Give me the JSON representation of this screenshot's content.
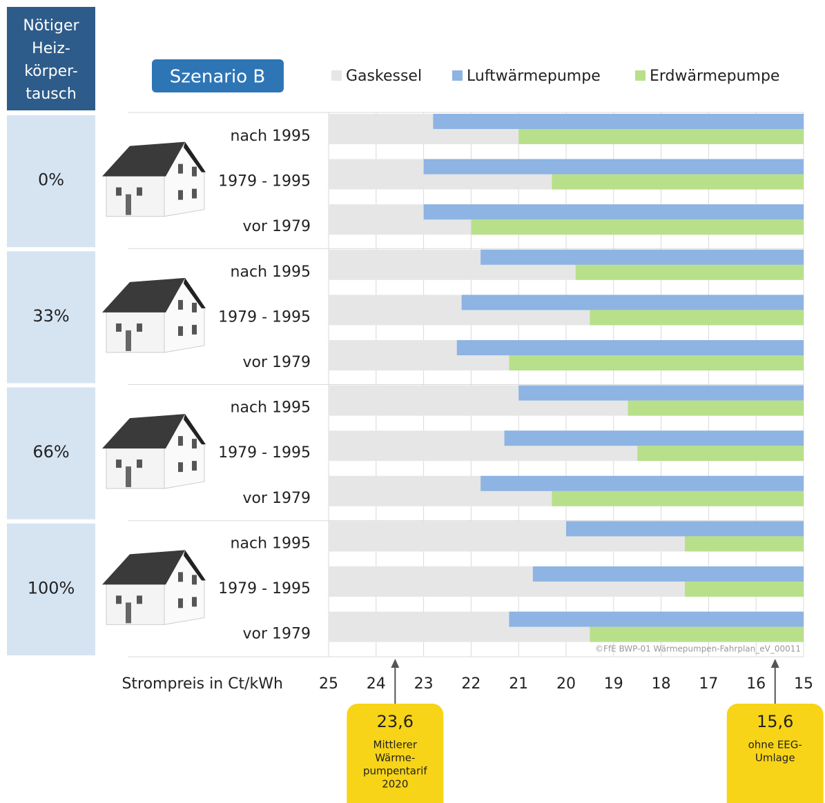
{
  "chart_data": {
    "type": "hbar",
    "title": "Szenario B",
    "header": [
      "Nötiger",
      "Heiz-",
      "körper-",
      "tausch"
    ],
    "groups": [
      "0%",
      "33%",
      "66%",
      "100%"
    ],
    "categories": [
      "nach 1995",
      "1979 - 1995",
      "vor 1979",
      "nach 1995",
      "1979 - 1995",
      "vor 1979",
      "nach 1995",
      "1979 - 1995",
      "vor 1979",
      "nach 1995",
      "1979 - 1995",
      "vor 1979"
    ],
    "series": [
      {
        "name": "Gaskessel",
        "color": "#e6e6e6",
        "values": [
          25,
          25,
          25,
          25,
          25,
          25,
          25,
          25,
          25,
          25,
          25,
          25
        ]
      },
      {
        "name": "Luftwärmepumpe",
        "color": "#8db4e2",
        "values": [
          22.8,
          23.0,
          23.0,
          21.8,
          22.2,
          22.3,
          21.0,
          21.3,
          21.8,
          20.0,
          20.7,
          21.2
        ]
      },
      {
        "name": "Erdwärmepumpe",
        "color": "#b8e08a",
        "values": [
          21.0,
          20.3,
          22.0,
          19.8,
          19.5,
          21.2,
          18.7,
          18.5,
          20.3,
          17.5,
          17.5,
          19.5
        ]
      }
    ],
    "xlabel": "Strompreis in Ct/kWh",
    "xlim": [
      25,
      15
    ],
    "xticks": [
      25,
      24,
      23,
      22,
      21,
      20,
      19,
      18,
      17,
      16,
      15
    ],
    "grid": true,
    "credit": "©FfE BWP-01 Wärmepumpen-Fahrplan_eV_00011",
    "annotations": [
      {
        "value": 23.6,
        "label": "23,6",
        "text": [
          "Mittlerer",
          "Wärme-",
          "pumpentarif",
          "2020"
        ]
      },
      {
        "value": 15.6,
        "label": "15,6",
        "text": [
          "ohne EEG-",
          "Umlage"
        ]
      }
    ]
  }
}
